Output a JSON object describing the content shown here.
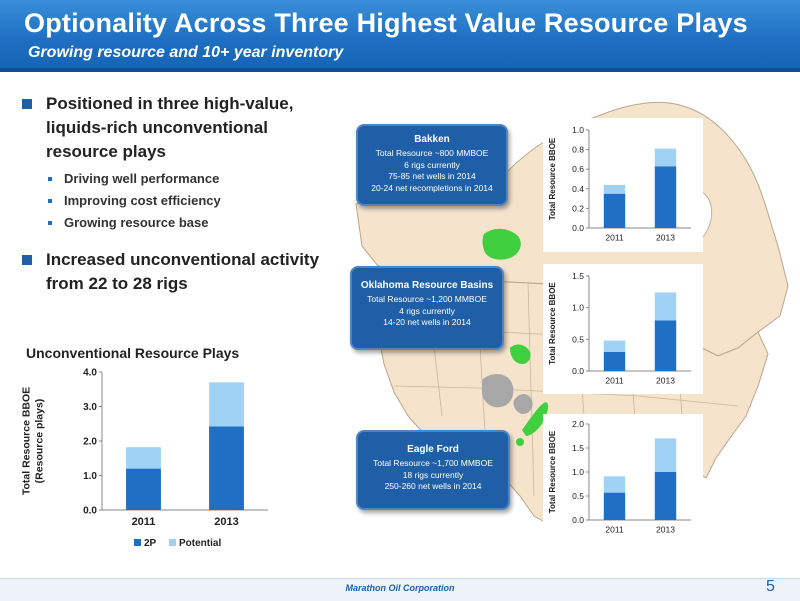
{
  "header": {
    "title": "Optionality Across Three Highest Value Resource Plays",
    "subtitle": "Growing resource and 10+ year inventory"
  },
  "bullets": [
    {
      "text": "Positioned in three high-value, liquids-rich unconventional resource plays",
      "sub": [
        "Driving well performance",
        "Improving cost efficiency",
        "Growing resource base"
      ]
    },
    {
      "text": "Increased unconventional activity from 22 to 28 rigs",
      "sub": []
    }
  ],
  "callouts": {
    "bakken": {
      "title": "Bakken",
      "lines": [
        "Total Resource ~800 MMBOE",
        "6 rigs currently",
        "75-85 net wells in 2014",
        "20-24 net recompletions in 2014"
      ]
    },
    "oklahoma": {
      "title": "Oklahoma Resource Basins",
      "lines": [
        "Total Resource ~1,200 MMBOE",
        "4 rigs currently",
        "14-20 net wells in 2014"
      ]
    },
    "eagleford": {
      "title": "Eagle Ford",
      "lines": [
        "Total Resource ~1,700 MMBOE",
        "18 rigs currently",
        "250-260 net wells in 2014"
      ]
    }
  },
  "colors": {
    "series_2p": "#1f6fc4",
    "series_potential": "#9fd2f5",
    "play_green": "#3fcf3f",
    "play_gray": "#a8a8a8",
    "land": "#f5e3cc"
  },
  "chart_data": [
    {
      "type": "bar",
      "stacked": true,
      "title": "Unconventional Resource Plays",
      "ylabel": "Total Resource BBOE (Resource plays)",
      "categories": [
        "2011",
        "2013"
      ],
      "series": [
        {
          "name": "2P",
          "values": [
            1.2,
            2.42
          ]
        },
        {
          "name": "Potential",
          "values": [
            0.62,
            1.28
          ]
        }
      ],
      "ylim": [
        0,
        4.0
      ],
      "yticks": [
        "0.0",
        "1.0",
        "2.0",
        "3.0",
        "4.0"
      ],
      "legend": "bottom"
    },
    {
      "type": "bar",
      "stacked": true,
      "ylabel": "Total Resource BBOE",
      "categories": [
        "2011",
        "2013"
      ],
      "series": [
        {
          "values": [
            0.35,
            0.63
          ]
        },
        {
          "values": [
            0.09,
            0.18
          ]
        }
      ],
      "ylim": [
        0,
        1.0
      ],
      "yticks": [
        "0.0",
        "0.2",
        "0.4",
        "0.6",
        "0.8",
        "1.0"
      ]
    },
    {
      "type": "bar",
      "stacked": true,
      "ylabel": "Total Resource BBOE",
      "categories": [
        "2011",
        "2013"
      ],
      "series": [
        {
          "values": [
            0.3,
            0.8
          ]
        },
        {
          "values": [
            0.18,
            0.44
          ]
        }
      ],
      "ylim": [
        0,
        1.5
      ],
      "yticks": [
        "0.0",
        "0.5",
        "1.0",
        "1.5"
      ]
    },
    {
      "type": "bar",
      "stacked": true,
      "ylabel": "Total Resource BBOE",
      "categories": [
        "2011",
        "2013"
      ],
      "series": [
        {
          "values": [
            0.57,
            1.0
          ]
        },
        {
          "values": [
            0.34,
            0.7
          ]
        }
      ],
      "ylim": [
        0,
        2.0
      ],
      "yticks": [
        "0.0",
        "0.5",
        "1.0",
        "1.5",
        "2.0"
      ]
    }
  ],
  "footer": {
    "company": "Marathon Oil Corporation",
    "page": "5"
  }
}
